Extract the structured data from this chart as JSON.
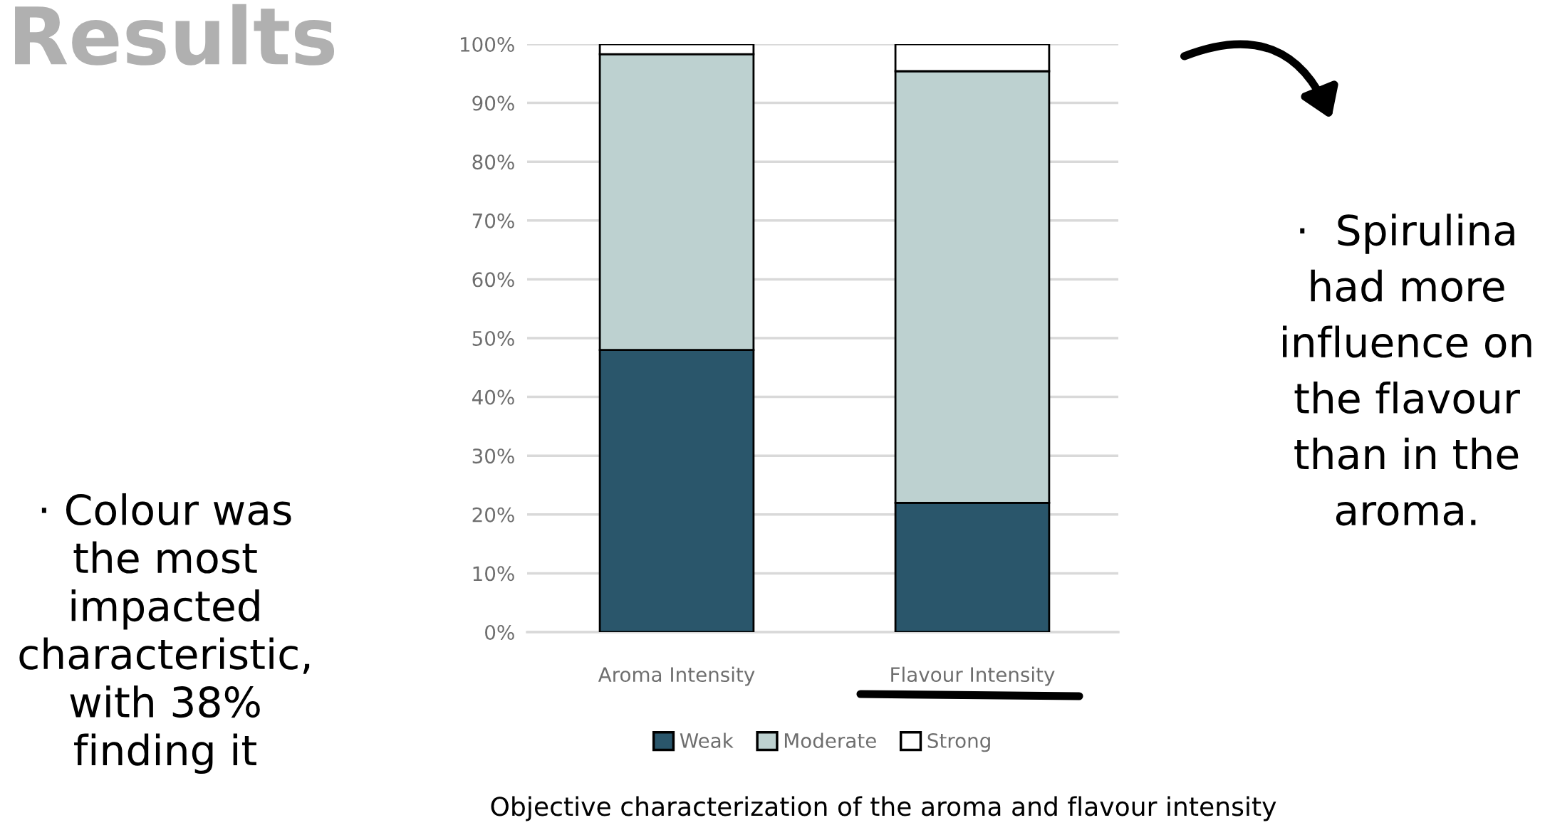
{
  "chart_data": {
    "type": "bar",
    "stacked": true,
    "title": "Results",
    "categories": [
      "Aroma Intensity",
      "Flavour Intensity"
    ],
    "series": [
      {
        "name": "Weak",
        "color": "#2a566b",
        "values": [
          48,
          22
        ]
      },
      {
        "name": "Moderate",
        "color": "#bdd1d0",
        "values": [
          50.3,
          73.4
        ]
      },
      {
        "name": "Strong",
        "color": "#ffffff",
        "values": [
          1.7,
          4.6
        ]
      }
    ],
    "ylim": [
      0,
      100
    ],
    "yticks": [
      {
        "value": 0,
        "label": "0%"
      },
      {
        "value": 10,
        "label": "10%"
      },
      {
        "value": 20,
        "label": "20%"
      },
      {
        "value": 30,
        "label": "30%"
      },
      {
        "value": 40,
        "label": "40%"
      },
      {
        "value": 50,
        "label": "50%"
      },
      {
        "value": 60,
        "label": "60%"
      },
      {
        "value": 70,
        "label": "70%"
      },
      {
        "value": 80,
        "label": "80%"
      },
      {
        "value": 90,
        "label": "90%"
      },
      {
        "value": 100,
        "label": "100%"
      }
    ],
    "grid": "y",
    "legend": "bottom",
    "annotations": [
      "Objective characterization of the aroma and flavour intensity",
      "· Colour was\nthe most\nimpacted\ncharacteristic,\nwith 38%\nfinding it",
      "·  Spirulina\nhad more\ninfluence on\nthe flavour\nthan in the\naroma."
    ]
  }
}
